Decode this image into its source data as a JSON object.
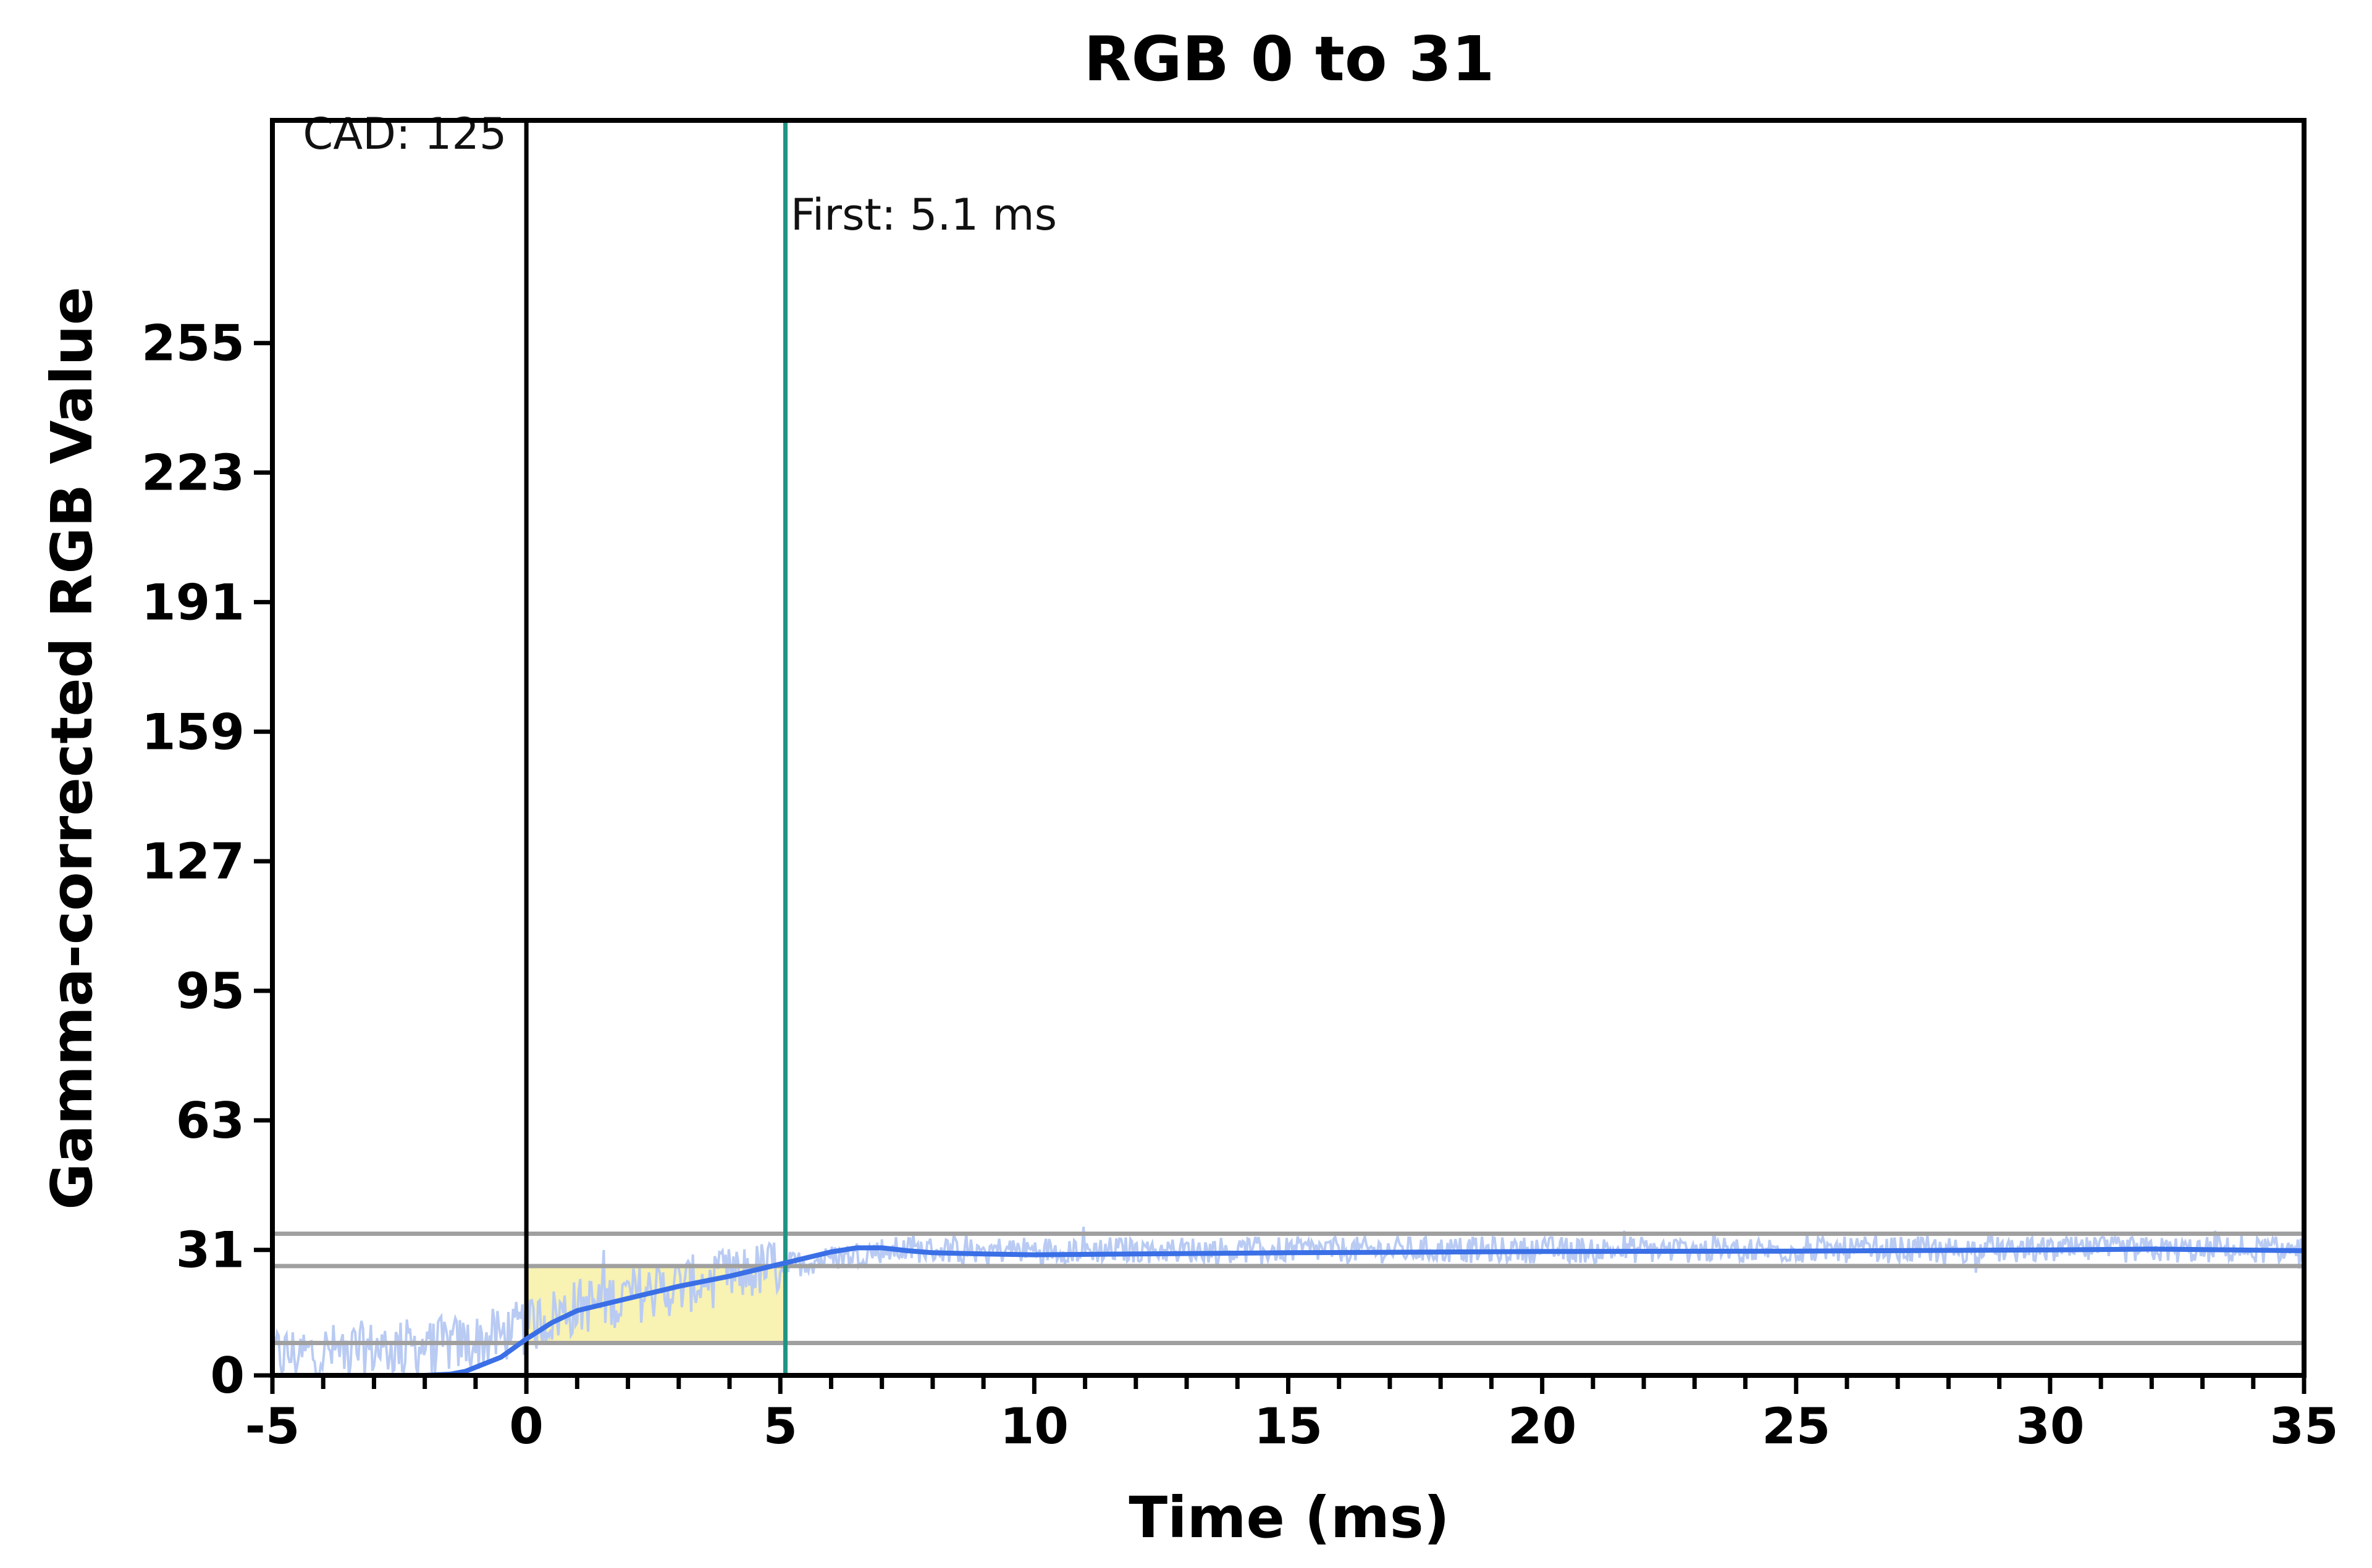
{
  "chart_data": {
    "type": "line",
    "title": "RGB 0 to 31",
    "xlabel": "Time (ms)",
    "ylabel": "Gamma-corrected RGB Value",
    "xlim": [
      -5,
      35
    ],
    "ylim": [
      0,
      310
    ],
    "x_ticks": [
      -5,
      0,
      5,
      10,
      15,
      20,
      25,
      30,
      35
    ],
    "x_tick_labels": [
      "-5",
      "0",
      "5",
      "10",
      "15",
      "20",
      "25",
      "30",
      "35"
    ],
    "x_minor_step": 1,
    "y_ticks": [
      0,
      31,
      63,
      95,
      127,
      159,
      191,
      223,
      255
    ],
    "y_tick_labels": [
      "0",
      "31",
      "63",
      "95",
      "127",
      "159",
      "191",
      "223",
      "255"
    ],
    "reference_lines": [
      {
        "axis": "y",
        "value": 8,
        "color": "#a0a0a0"
      },
      {
        "axis": "y",
        "value": 27,
        "color": "#a0a0a0"
      },
      {
        "axis": "y",
        "value": 35,
        "color": "#a0a0a0"
      },
      {
        "axis": "x",
        "value": 0,
        "color": "#000000"
      },
      {
        "axis": "x",
        "value": 5.1,
        "color": "#1f9484"
      }
    ],
    "highlight_region": {
      "x_start": 0,
      "x_end": 5.1,
      "y_low": 8,
      "y_high": 27,
      "color": "#f7f0a6"
    },
    "annotations": [
      {
        "text": "CAD: 125",
        "x": -4.4,
        "y": 303
      },
      {
        "text": "First: 5.1 ms",
        "x": 5.2,
        "y": 283
      }
    ],
    "series": [
      {
        "style": "smoothed",
        "color": "#3a6fe6",
        "x": [
          -5,
          -2,
          -1.5,
          -1.2,
          -1,
          -0.5,
          0,
          0.5,
          1,
          2,
          3,
          4,
          5,
          5.5,
          6,
          6.5,
          7,
          7.5,
          8,
          9,
          10,
          12,
          15,
          20,
          25,
          30,
          32,
          35
        ],
        "y": [
          0,
          0,
          0.3,
          1,
          2,
          4.5,
          9,
          13,
          16,
          19,
          22,
          24.5,
          27.5,
          29,
          30.5,
          31.5,
          31.5,
          30.8,
          30.3,
          30,
          29.8,
          30,
          30.3,
          30.6,
          30.7,
          31,
          31.2,
          30.8
        ]
      },
      {
        "style": "raw",
        "color": "#b9cbf3",
        "description_points": [
          {
            "x": -5,
            "y": 5
          },
          {
            "x": -1,
            "y": 8
          },
          {
            "x": 0,
            "y": 12
          },
          {
            "x": 1,
            "y": 17
          },
          {
            "x": 3,
            "y": 22
          },
          {
            "x": 5,
            "y": 27
          },
          {
            "x": 7,
            "y": 31
          },
          {
            "x": 35,
            "y": 31
          }
        ],
        "noise_amplitude": 6
      }
    ]
  }
}
